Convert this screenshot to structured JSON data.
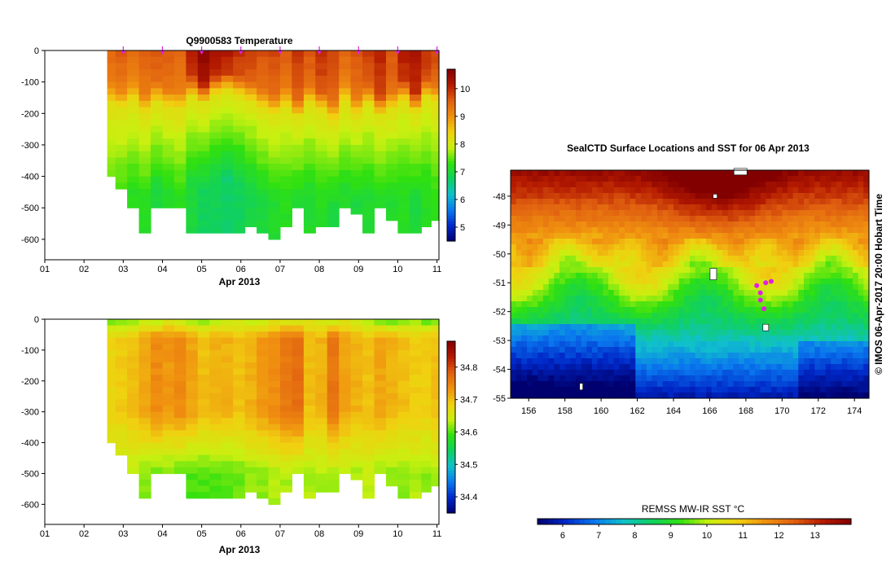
{
  "colors": {
    "colormap": [
      "#00006e",
      "#0028c8",
      "#0a78ee",
      "#10c0cc",
      "#10d060",
      "#30e010",
      "#c8f010",
      "#f0d010",
      "#f09010",
      "#e06010",
      "#b41a00",
      "#820000"
    ],
    "float_marker": "#e020e0",
    "land": "#ffffff"
  },
  "chart_data": [
    {
      "id": "temperature",
      "type": "heatmap",
      "title": "Q9900583  Temperature",
      "xlabel": "Apr 2013",
      "ylabel": "",
      "x_ticks": [
        "01",
        "02",
        "03",
        "04",
        "05",
        "06",
        "07",
        "08",
        "09",
        "10",
        "11"
      ],
      "xlim": [
        1,
        11.05
      ],
      "ylim": [
        -665,
        0
      ],
      "y_ticks": [
        0,
        -100,
        -200,
        -300,
        -400,
        -500,
        -600
      ],
      "colorbar": {
        "min": 4.5,
        "max": 10.7,
        "ticks": [
          5,
          6,
          7,
          8,
          9,
          10
        ]
      },
      "profile_times": [
        2.65,
        2.95,
        3.25,
        3.55,
        3.85,
        4.15,
        4.45,
        4.75,
        5.05,
        5.35,
        5.65,
        5.95,
        6.25,
        6.55,
        6.85,
        7.15,
        7.45,
        7.75,
        8.05,
        8.35,
        8.65,
        8.95,
        9.25,
        9.55,
        9.85,
        10.15,
        10.45,
        10.75,
        10.95
      ],
      "profile_max_depth": [
        -385,
        -425,
        -500,
        -570,
        -500,
        -500,
        -500,
        -565,
        -565,
        -565,
        -565,
        -565,
        -550,
        -565,
        -590,
        -545,
        -500,
        -570,
        -545,
        -545,
        -500,
        -520,
        -565,
        -500,
        -530,
        -575,
        -570,
        -555,
        -540
      ],
      "surface_temp": [
        9.5,
        9.6,
        9.5,
        9.6,
        9.7,
        9.6,
        9.5,
        10.2,
        10.6,
        10.3,
        10.2,
        10.0,
        9.9,
        9.7,
        9.8,
        9.6,
        9.9,
        9.7,
        10.0,
        9.8,
        9.5,
        9.7,
        9.9,
        10.1,
        9.7,
        10.2,
        10.3,
        10.0,
        9.8
      ],
      "mixed_depth": [
        -110,
        -120,
        -100,
        -140,
        -105,
        -125,
        -130,
        -85,
        -105,
        -80,
        -70,
        -85,
        -100,
        -125,
        -140,
        -120,
        -150,
        -110,
        -130,
        -160,
        -105,
        -145,
        -110,
        -145,
        -130,
        -100,
        -135,
        -90,
        -105
      ],
      "deep_temp": [
        7.4,
        7.3,
        7.2,
        7.2,
        7.0,
        7.1,
        7.2,
        7.0,
        6.8,
        6.8,
        6.7,
        6.8,
        6.9,
        7.0,
        7.1,
        7.2,
        7.0,
        7.1,
        7.2,
        7.0,
        7.1,
        7.0,
        7.1,
        7.1,
        7.1,
        7.2,
        7.0,
        7.2,
        7.3
      ],
      "markers_x": [
        3,
        4,
        5,
        6,
        7,
        8,
        9,
        10,
        11
      ]
    },
    {
      "id": "salinity",
      "type": "heatmap",
      "title": "",
      "xlabel": "Apr 2013",
      "ylabel": "",
      "x_ticks": [
        "01",
        "02",
        "03",
        "04",
        "05",
        "06",
        "07",
        "08",
        "09",
        "10",
        "11"
      ],
      "xlim": [
        1,
        11.05
      ],
      "ylim": [
        -665,
        0
      ],
      "y_ticks": [
        0,
        -100,
        -200,
        -300,
        -400,
        -500,
        -600
      ],
      "colorbar": {
        "min": 34.35,
        "max": 34.88,
        "ticks": [
          34.4,
          34.5,
          34.6,
          34.7,
          34.8
        ]
      },
      "profile_times": [
        2.65,
        2.95,
        3.25,
        3.55,
        3.85,
        4.15,
        4.45,
        4.75,
        5.05,
        5.35,
        5.65,
        5.95,
        6.25,
        6.55,
        6.85,
        7.15,
        7.45,
        7.75,
        8.05,
        8.35,
        8.65,
        8.95,
        9.25,
        9.55,
        9.85,
        10.15,
        10.45,
        10.75,
        10.95
      ],
      "profile_max_depth": [
        -385,
        -425,
        -500,
        -570,
        -500,
        -500,
        -500,
        -565,
        -565,
        -565,
        -565,
        -565,
        -550,
        -565,
        -590,
        -545,
        -500,
        -570,
        -545,
        -545,
        -500,
        -520,
        -565,
        -500,
        -530,
        -575,
        -570,
        -555,
        -540
      ],
      "surface_sal": [
        34.61,
        34.6,
        34.62,
        34.63,
        34.62,
        34.65,
        34.63,
        34.62,
        34.61,
        34.62,
        34.63,
        34.64,
        34.63,
        34.62,
        34.65,
        34.64,
        34.63,
        34.66,
        34.64,
        34.63,
        34.65,
        34.64,
        34.62,
        34.6,
        34.6,
        34.61,
        34.62,
        34.6,
        34.61
      ],
      "core_sal": [
        34.68,
        34.69,
        34.7,
        34.72,
        34.74,
        34.73,
        34.74,
        34.72,
        34.7,
        34.71,
        34.71,
        34.7,
        34.71,
        34.73,
        34.74,
        34.76,
        34.77,
        34.7,
        34.71,
        34.76,
        34.72,
        34.71,
        34.7,
        34.72,
        34.71,
        34.7,
        34.69,
        34.69,
        34.7
      ],
      "deep_sal": [
        34.64,
        34.63,
        34.63,
        34.62,
        34.61,
        34.61,
        34.6,
        34.6,
        34.6,
        34.6,
        34.6,
        34.61,
        34.62,
        34.62,
        34.63,
        34.63,
        34.62,
        34.63,
        34.63,
        34.63,
        34.63,
        34.63,
        34.64,
        34.62,
        34.62,
        34.62,
        34.63,
        34.62,
        34.63
      ]
    },
    {
      "id": "sst_map",
      "type": "heatmap",
      "title": "SealCTD Surface Locations and SST for 06 Apr 2013",
      "xlim": [
        155,
        174.8
      ],
      "ylim": [
        -55,
        -47.1
      ],
      "x_ticks": [
        156,
        158,
        160,
        162,
        164,
        166,
        168,
        170,
        172,
        174
      ],
      "y_ticks": [
        -48,
        -49,
        -50,
        -51,
        -52,
        -53,
        -54,
        -55
      ],
      "colorbar": {
        "label": "REMSS MW-IR SST °C",
        "min": 5.3,
        "max": 14.0,
        "ticks": [
          6,
          7,
          8,
          9,
          10,
          11,
          12,
          13
        ]
      },
      "side_label": "© IMOS 06-Apr-2017 20:00 Hobart Time",
      "locations": [
        {
          "lon": 168.6,
          "lat": -51.1
        },
        {
          "lon": 168.8,
          "lat": -51.35
        },
        {
          "lon": 168.8,
          "lat": -51.6
        },
        {
          "lon": 169.0,
          "lat": -51.9
        },
        {
          "lon": 169.1,
          "lat": -51.0
        },
        {
          "lon": 169.4,
          "lat": -50.95
        }
      ]
    }
  ]
}
